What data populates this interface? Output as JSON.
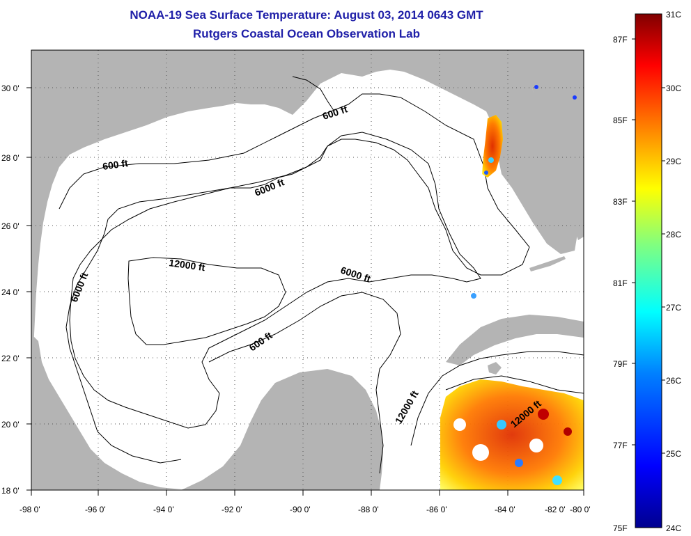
{
  "title": "NOAA-19 Sea Surface Temperature:  August 03, 2014 0643 GMT",
  "subtitle": "Rutgers Coastal Ocean Observation Lab",
  "map": {
    "lon_range": [
      -98,
      -80
    ],
    "lat_range": [
      18,
      31
    ],
    "lon_ticks": [
      "-98 0'",
      "-96 0'",
      "-94 0'",
      "-92 0'",
      "-90 0'",
      "-88 0'",
      "-86 0'",
      "-84 0'",
      "-82 0'",
      "-80 0'"
    ],
    "lat_ticks": [
      "18 0'",
      "20 0'",
      "22 0'",
      "24 0'",
      "26 0'",
      "28 0'",
      "30 0'"
    ],
    "grid": "dotted",
    "land_color": "#b4b4b4",
    "contour_labels": [
      "600 ft",
      "600 ft",
      "6000 ft",
      "12000 ft",
      "6000 ft",
      "6000 ft",
      "600 ft",
      "12000 ft",
      "12000 ft"
    ]
  },
  "colorbar": {
    "celsius_ticks": [
      "31C",
      "30C",
      "29C",
      "28C",
      "27C",
      "26C",
      "25C",
      "24C"
    ],
    "fahrenheit_ticks": [
      "87F",
      "85F",
      "83F",
      "81F",
      "79F",
      "77F",
      "75F"
    ],
    "min_c": 24,
    "max_c": 31,
    "colors": [
      "#00008f",
      "#0000ff",
      "#0080ff",
      "#00ffff",
      "#80ff80",
      "#ffff00",
      "#ff8000",
      "#ff0000",
      "#800000"
    ]
  }
}
